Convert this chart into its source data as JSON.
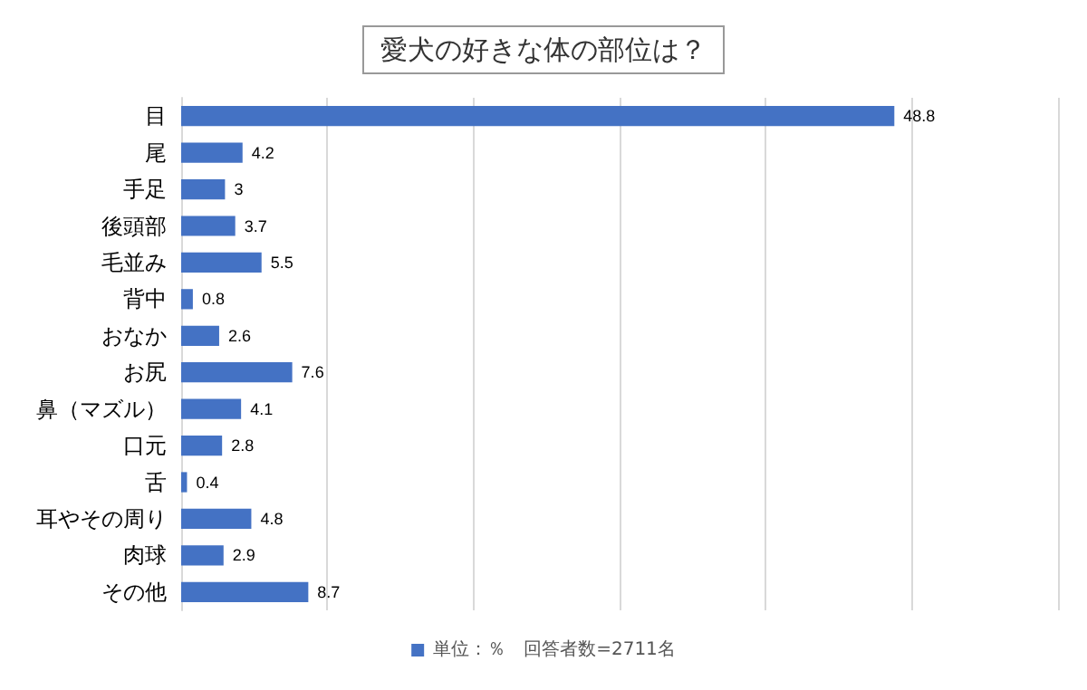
{
  "chart_data": {
    "type": "bar",
    "orientation": "horizontal",
    "title": "愛犬の好きな体の部位は？",
    "categories": [
      "目",
      "尾",
      "手足",
      "後頭部",
      "毛並み",
      "背中",
      "おなか",
      "お尻",
      "鼻（マズル）",
      "口元",
      "舌",
      "耳やその周り",
      "肉球",
      "その他"
    ],
    "series": [
      {
        "name": "単位：％　回答者数=2711名",
        "color": "#4472c4",
        "values": [
          48.8,
          4.2,
          3,
          3.7,
          5.5,
          0.8,
          2.6,
          7.6,
          4.1,
          2.8,
          0.4,
          4.8,
          2.9,
          8.7
        ]
      }
    ],
    "xlim": [
      0,
      60
    ],
    "xticks": [
      0,
      10,
      20,
      30,
      40,
      50,
      60
    ],
    "grid": "x",
    "tick_labels": "y",
    "data_labels": true,
    "legend": "bottom"
  }
}
